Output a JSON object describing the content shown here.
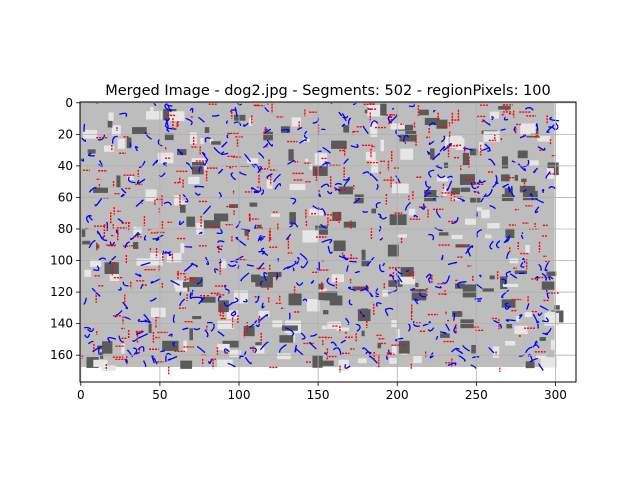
{
  "chart_data": {
    "type": "heatmap",
    "title": "Merged Image - dog2.jpg - Segments: 502 - regionPixels: 100",
    "xlabel": "",
    "ylabel": "",
    "image_width": 300,
    "image_height": 168,
    "xlim": [
      -0.5,
      313
    ],
    "ylim": [
      177,
      -0.5
    ],
    "xticks": [
      0,
      50,
      100,
      150,
      200,
      250,
      300
    ],
    "yticks": [
      0,
      20,
      40,
      60,
      80,
      100,
      120,
      140,
      160
    ],
    "grid": true,
    "colors": {
      "background": "#bdbdbd",
      "dark_region": "#5a5a5a",
      "light_region": "#e6e6e6",
      "boundary_red": "#ff0000",
      "boundary_blue": "#0000ff",
      "grid": "#b0b0b0"
    }
  }
}
